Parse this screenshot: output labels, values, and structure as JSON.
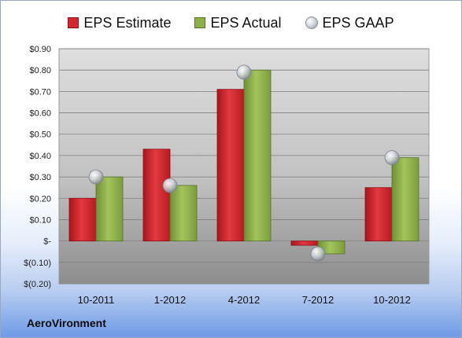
{
  "legend": {
    "estimate": "EPS Estimate",
    "actual": "EPS Actual",
    "gaap": "EPS GAAP"
  },
  "company": "AeroVironment",
  "chart_data": {
    "type": "bar",
    "categories": [
      "10-2011",
      "1-2012",
      "4-2012",
      "7-2012",
      "10-2012"
    ],
    "series": [
      {
        "name": "EPS Estimate",
        "type": "bar",
        "color": "#d3262e",
        "values": [
          0.2,
          0.43,
          0.71,
          -0.02,
          0.25
        ]
      },
      {
        "name": "EPS Actual",
        "type": "bar",
        "color": "#8db04a",
        "values": [
          0.3,
          0.26,
          0.8,
          -0.06,
          0.39
        ]
      },
      {
        "name": "EPS GAAP",
        "type": "scatter",
        "color": "#c9ccd1",
        "values": [
          0.3,
          0.26,
          0.79,
          -0.06,
          0.39
        ]
      }
    ],
    "yticks": [
      0.9,
      0.8,
      0.7,
      0.6,
      0.5,
      0.4,
      0.3,
      0.2,
      0.1,
      0,
      -0.1,
      -0.2
    ],
    "ytick_labels": [
      "$0.90",
      "$0.80",
      "$0.70",
      "$0.60",
      "$0.50",
      "$0.40",
      "$0.30",
      "$0.20",
      "$0.10",
      "$-",
      "$(0.10)",
      "$(0.20)"
    ],
    "ylim": [
      -0.2,
      0.9
    ],
    "grid": true,
    "legend_position": "top"
  }
}
